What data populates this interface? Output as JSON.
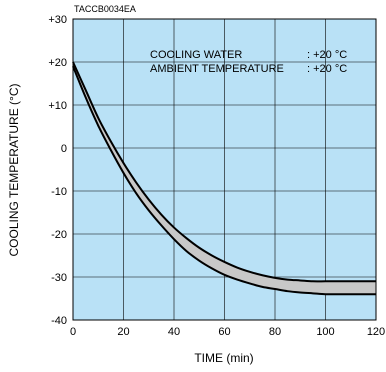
{
  "chart_data": {
    "type": "area",
    "code": "TACCB0034EA",
    "xlabel": "TIME (min)",
    "ylabel": "COOLING TEMPERATURE (°C)",
    "xlim": [
      0,
      120
    ],
    "ylim": [
      -40,
      30
    ],
    "x_ticks": [
      "0",
      "20",
      "40",
      "60",
      "80",
      "100",
      "120"
    ],
    "y_ticks": [
      "+30",
      "+20",
      "+10",
      "0",
      "-10",
      "-20",
      "-30",
      "-40"
    ],
    "grid": true,
    "annotation": {
      "line1_label": "COOLING WATER",
      "line1_value": ": +20 °C",
      "line2_label": "AMBIENT TEMPERATURE",
      "line2_value": ": +20 °C"
    },
    "series": [
      {
        "x": [
          0,
          5,
          10,
          15,
          20,
          25,
          30,
          35,
          40,
          45,
          50,
          55,
          60,
          65,
          70,
          75,
          80,
          85,
          90,
          95,
          100,
          105,
          110,
          115,
          120
        ],
        "values": [
          20,
          13.5,
          7,
          1.5,
          -3.5,
          -8,
          -12,
          -15.5,
          -18.5,
          -21,
          -23.2,
          -25,
          -26.5,
          -27.8,
          -28.8,
          -29.6,
          -30.2,
          -30.6,
          -30.8,
          -31,
          -31,
          -31,
          -31,
          -31,
          -31
        ]
      },
      {
        "x": [
          0,
          5,
          10,
          15,
          20,
          25,
          30,
          35,
          40,
          45,
          50,
          55,
          60,
          65,
          70,
          75,
          80,
          85,
          90,
          95,
          100,
          105,
          110,
          115,
          120
        ],
        "values": [
          19,
          11.8,
          5.2,
          -0.5,
          -5.8,
          -10.5,
          -14.5,
          -18,
          -21.2,
          -24,
          -26.2,
          -28,
          -29.5,
          -30.6,
          -31.5,
          -32.3,
          -32.8,
          -33.3,
          -33.6,
          -33.8,
          -34,
          -34,
          -34,
          -34,
          -34
        ]
      }
    ]
  },
  "colors": {
    "plot_background": "#b9e1f6",
    "band_fill": "#c8c8c8",
    "line": "#000000"
  }
}
